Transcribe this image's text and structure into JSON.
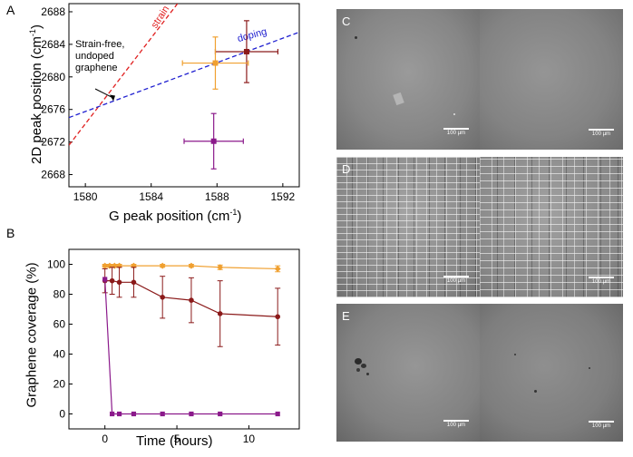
{
  "panels": {
    "A": {
      "label": "A",
      "chart_data": {
        "type": "scatter",
        "xlabel_main": "G peak position (cm",
        "xlabel_sup": "-1",
        "xlabel_end": ")",
        "ylabel_main": "2D peak position (cm",
        "ylabel_sup": "-1",
        "ylabel_end": ")",
        "xlim": [
          1579,
          1593
        ],
        "ylim": [
          2666.5,
          2689
        ],
        "xticks": [
          1580,
          1584,
          1588,
          1592
        ],
        "yticks": [
          2668,
          2672,
          2676,
          2680,
          2684,
          2688
        ],
        "points": [
          {
            "x": 1589.8,
            "y": 2683.1,
            "xerr": 1.9,
            "yerr": 3.8,
            "color": "#8b1a1a"
          },
          {
            "x": 1587.9,
            "y": 2681.7,
            "xerr": 2.0,
            "yerr": 3.2,
            "color": "#f0a030"
          },
          {
            "x": 1587.8,
            "y": 2672.1,
            "xerr": 1.8,
            "yerr": 3.4,
            "color": "#8b1a8b"
          }
        ],
        "lines": [
          {
            "name": "strain",
            "color": "#e02020",
            "from": [
              1579,
              2671.6
            ],
            "to": [
              1585.6,
              2689
            ]
          },
          {
            "name": "doping",
            "color": "#2020d0",
            "from": [
              1579,
              2675.0
            ],
            "to": [
              1593,
              2685.5
            ]
          }
        ],
        "line_labels": {
          "strain": "strain",
          "doping": "doping"
        },
        "annotation": [
          "Strain-free,",
          "undoped",
          "graphene"
        ],
        "annotation_target": [
          1581.7,
          2676.8
        ]
      }
    },
    "B": {
      "label": "B",
      "chart_data": {
        "type": "line",
        "xlabel": "Time (hours)",
        "ylabel": "Graphene coverage (%)",
        "xlim": [
          -2.5,
          13.5
        ],
        "ylim": [
          -10,
          110
        ],
        "xticks": [
          0,
          5,
          10
        ],
        "yticks": [
          0,
          20,
          40,
          60,
          80,
          100
        ],
        "series": [
          {
            "color": "#f0a030",
            "marker": "diamond",
            "x": [
              0,
              0.33,
              0.67,
              1,
              2,
              4,
              6,
              8,
              12
            ],
            "y": [
              99,
              99,
              99,
              99,
              99,
              99,
              99,
              98,
              97
            ],
            "err": [
              1,
              1,
              1,
              1,
              1,
              1,
              1,
              1.5,
              2
            ]
          },
          {
            "color": "#8b1a1a",
            "marker": "circle",
            "x": [
              0,
              0.5,
              1,
              2,
              4,
              6,
              8,
              12
            ],
            "y": [
              89,
              89,
              88,
              88,
              78,
              76,
              67,
              65
            ],
            "err": [
              8,
              9,
              10,
              10,
              14,
              15,
              22,
              19
            ]
          },
          {
            "color": "#8b1a8b",
            "marker": "square",
            "x": [
              0,
              0.5,
              1,
              2,
              4,
              6,
              8,
              12
            ],
            "y": [
              90,
              0,
              0,
              0,
              0,
              0,
              0,
              0
            ],
            "err": [
              0,
              0,
              0,
              0,
              0,
              0,
              0,
              0
            ]
          }
        ]
      }
    },
    "images": {
      "C": {
        "label": "C",
        "scale": "100 µm"
      },
      "D": {
        "label": "D",
        "scale": "100 µm"
      },
      "E": {
        "label": "E",
        "scale": "100 µm"
      }
    }
  }
}
